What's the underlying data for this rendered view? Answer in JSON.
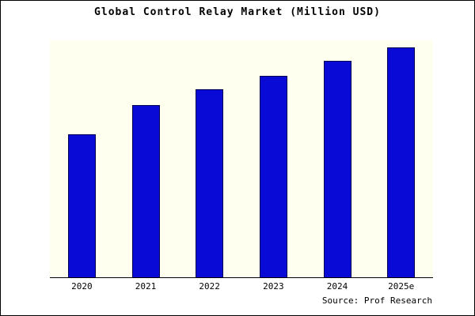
{
  "chart_data": {
    "type": "bar",
    "title": "Global Control Relay Market (Million USD)",
    "categories": [
      "2020",
      "2021",
      "2022",
      "2023",
      "2024",
      "2025e"
    ],
    "values": [
      623,
      750,
      817,
      877,
      940,
      1000
    ],
    "xlabel": "",
    "ylabel": "",
    "ylim": [
      0,
      1030
    ],
    "grid": false,
    "legend": false,
    "bar_color": "#0a0ad6",
    "bar_edge_color": "#000050",
    "plot_background": "#fffff0"
  },
  "source": "Source: Prof Research"
}
